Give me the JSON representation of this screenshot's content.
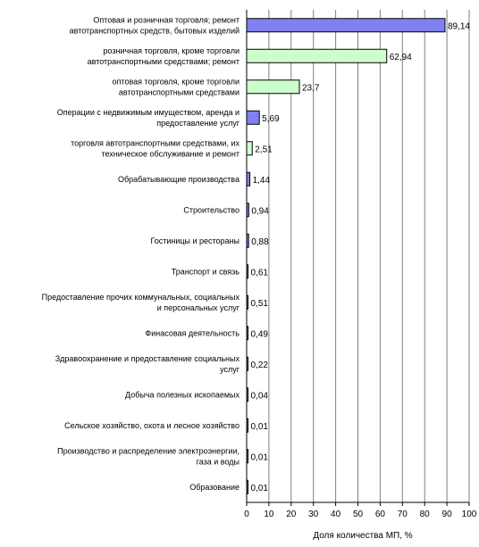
{
  "chart_data": {
    "type": "bar",
    "orientation": "horizontal",
    "xlabel": "Доля количества МП, %",
    "xlim": [
      0,
      100
    ],
    "xticks": [
      0,
      10,
      20,
      30,
      40,
      50,
      60,
      70,
      80,
      90,
      100
    ],
    "grid": "vertical",
    "colors": {
      "blue": "#8080f0",
      "green": "#ccffcc",
      "border": "#000000",
      "grid": "#808080"
    },
    "items": [
      {
        "label": [
          "Оптовая и розничная торговля; ремонт",
          "автотранспортных средств, бытовых изделий"
        ],
        "value": 89.14,
        "display": "89,14",
        "color": "blue"
      },
      {
        "label": [
          "розничная торговля, кроме торговли",
          "автотранспортными средствами; ремонт"
        ],
        "value": 62.94,
        "display": "62,94",
        "color": "green"
      },
      {
        "label": [
          "оптовая торговля, кроме торговли",
          "автотранспортными средствами"
        ],
        "value": 23.7,
        "display": "23,7",
        "color": "green"
      },
      {
        "label": [
          "Операции с недвижимым имуществом, аренда и",
          "предоставление услуг"
        ],
        "value": 5.69,
        "display": "5,69",
        "color": "blue"
      },
      {
        "label": [
          "торговля автотранспортными средствами, их",
          "техническое обслуживание и ремонт"
        ],
        "value": 2.51,
        "display": "2,51",
        "color": "green"
      },
      {
        "label": [
          "Обрабатывающие производства"
        ],
        "value": 1.44,
        "display": "1,44",
        "color": "blue"
      },
      {
        "label": [
          "Строительство"
        ],
        "value": 0.94,
        "display": "0,94",
        "color": "blue"
      },
      {
        "label": [
          "Гостиницы и рестораны"
        ],
        "value": 0.88,
        "display": "0,88",
        "color": "blue"
      },
      {
        "label": [
          "Транспорт и связь"
        ],
        "value": 0.61,
        "display": "0,61",
        "color": "blue"
      },
      {
        "label": [
          "Предоставление прочих коммунальных, социальных",
          "и персональных услуг"
        ],
        "value": 0.51,
        "display": "0,51",
        "color": "blue"
      },
      {
        "label": [
          "Финасовая деятельность"
        ],
        "value": 0.49,
        "display": "0,49",
        "color": "blue"
      },
      {
        "label": [
          "Здравоохранение и предоставление социальных",
          "услуг"
        ],
        "value": 0.22,
        "display": "0,22",
        "color": "blue"
      },
      {
        "label": [
          "Добыча полезных ископаемых"
        ],
        "value": 0.04,
        "display": "0,04",
        "color": "blue"
      },
      {
        "label": [
          "Сельское хозяйство, охота и лесное хозяйство"
        ],
        "value": 0.01,
        "display": "0,01",
        "color": "blue"
      },
      {
        "label": [
          "Производство и распределение электроэнергии,",
          "газа и воды"
        ],
        "value": 0.01,
        "display": "0,01",
        "color": "blue"
      },
      {
        "label": [
          "Образование"
        ],
        "value": 0.01,
        "display": "0,01",
        "color": "blue"
      }
    ]
  }
}
